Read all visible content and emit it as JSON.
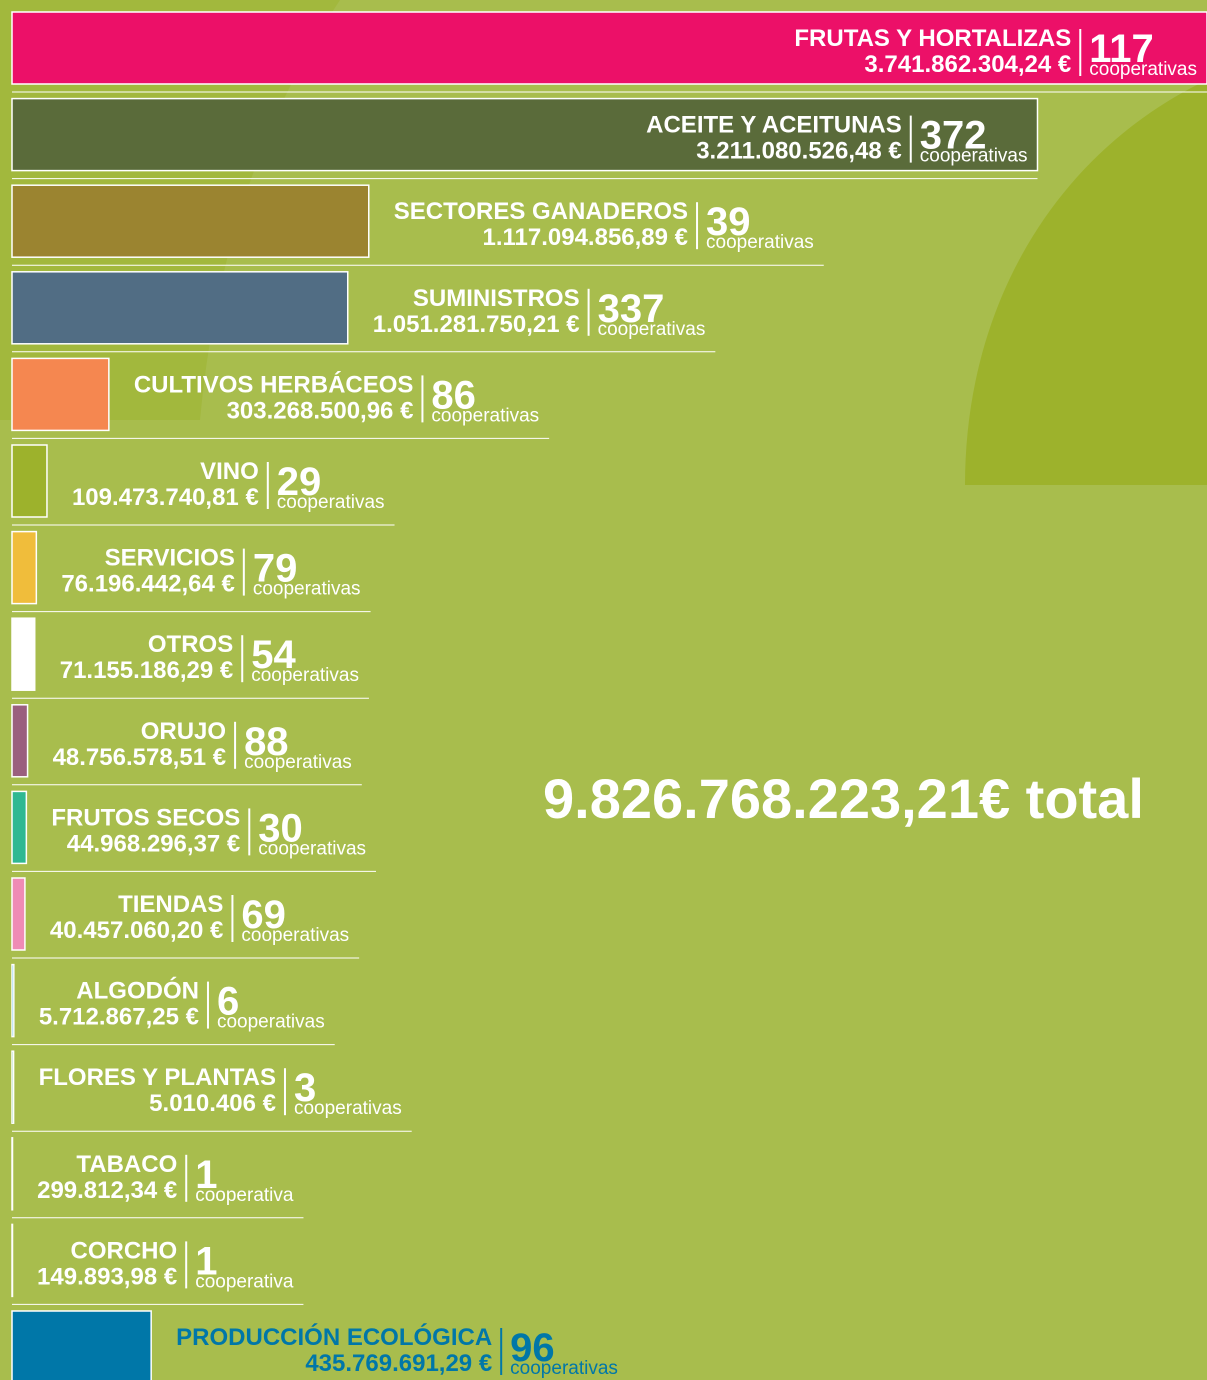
{
  "chart_data": {
    "type": "bar",
    "orientation": "horizontal",
    "categories": [
      "FRUTAS Y HORTALIZAS",
      "ACEITE Y ACEITUNAS",
      "SECTORES GANADEROS",
      "SUMINISTROS",
      "CULTIVOS HERBÁCEOS",
      "VINO",
      "SERVICIOS",
      "OTROS",
      "ORUJO",
      "FRUTOS SECOS",
      "TIENDAS",
      "ALGODÓN",
      "FLORES Y PLANTAS",
      "TABACO",
      "CORCHO",
      "PRODUCCIÓN ECOLÓGICA"
    ],
    "values": [
      3741862304.24,
      3211080526.48,
      1117094856.89,
      1051281750.21,
      303268500.96,
      109473740.81,
      76196442.64,
      71155186.29,
      48756578.51,
      44968296.37,
      40457060.2,
      5712867.25,
      5010406,
      299812.34,
      149893.98,
      435769691.29
    ],
    "value_labels": [
      "3.741.862.304,24 €",
      "3.211.080.526,48 €",
      "1.117.094.856,89 €",
      "1.051.281.750,21 €",
      "303.268.500,96 €",
      "109.473.740,81 €",
      "76.196.442,64 €",
      "71.155.186,29 €",
      "48.756.578,51 €",
      "44.968.296,37 €",
      "40.457.060,20 €",
      "5.712.867,25 €",
      "5.010.406 €",
      "299.812,34 €",
      "149.893,98 €",
      "435.769.691,29 €"
    ],
    "colors": [
      "#ec1068",
      "#5a6b3a",
      "#9b8430",
      "#516d84",
      "#f58750",
      "#9db22c",
      "#f0bd3b",
      "#ffffff",
      "#9a5f7e",
      "#2fb892",
      "#ef8bb5",
      "#1aa3d8",
      "#1a9a5a",
      "#c9d37a",
      "#c9d37a",
      "#0077a8"
    ],
    "cooperatives": [
      117,
      372,
      39,
      337,
      86,
      29,
      79,
      54,
      88,
      30,
      69,
      6,
      3,
      1,
      1,
      96
    ],
    "cooperative_labels": [
      "cooperativas",
      "cooperativas",
      "cooperativas",
      "cooperativas",
      "cooperativas",
      "cooperativas",
      "cooperativas",
      "cooperativas",
      "cooperativas",
      "cooperativas",
      "cooperativas",
      "cooperativas",
      "cooperativas",
      "cooperativa",
      "cooperativa",
      "cooperativas"
    ],
    "text_colors": [
      "#ffffff",
      "#ffffff",
      "#ffffff",
      "#ffffff",
      "#ffffff",
      "#ffffff",
      "#ffffff",
      "#ffffff",
      "#ffffff",
      "#ffffff",
      "#ffffff",
      "#ffffff",
      "#ffffff",
      "#ffffff",
      "#ffffff",
      "#0077a8"
    ],
    "annotation": "9.826.768.223,21€ total"
  }
}
